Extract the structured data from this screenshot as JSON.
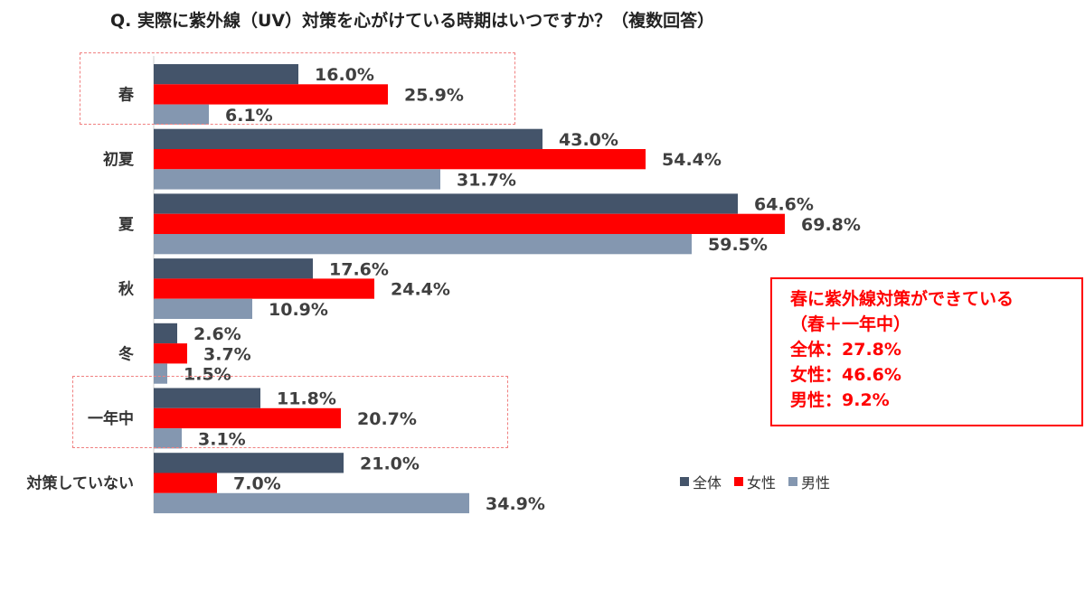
{
  "title": "Q. 実際に紫外線（UV）対策を心がけている時期はいつですか？（複数回答）",
  "colors": {
    "全体": "#44546a",
    "女性": "#ff0000",
    "男性": "#8497b0"
  },
  "chart_data": {
    "type": "bar",
    "orientation": "horizontal",
    "categories": [
      "春",
      "初夏",
      "夏",
      "秋",
      "冬",
      "一年中",
      "対策していない"
    ],
    "series": [
      {
        "name": "全体",
        "values": [
          16.0,
          43.0,
          64.6,
          17.6,
          2.6,
          11.8,
          21.0
        ],
        "labels": [
          "16.0%",
          "43.0%",
          "64.6%",
          "17.6%",
          "2.6%",
          "11.8%",
          "21.0%"
        ]
      },
      {
        "name": "女性",
        "values": [
          25.9,
          54.4,
          69.8,
          24.4,
          3.7,
          20.7,
          7.0
        ],
        "labels": [
          "25.9%",
          "54.4%",
          "69.8%",
          "24.4%",
          "3.7%",
          "20.7%",
          "7.0%"
        ]
      },
      {
        "name": "男性",
        "values": [
          6.1,
          31.7,
          59.5,
          10.9,
          1.5,
          3.1,
          34.9
        ],
        "labels": [
          "6.1%",
          "31.7%",
          "59.5%",
          "10.9%",
          "1.5%",
          "3.1%",
          "34.9%"
        ]
      }
    ],
    "xlim": [
      0,
      100
    ],
    "legend_position": "bottom-right",
    "highlighted_categories": [
      "春",
      "一年中"
    ]
  },
  "callout": {
    "line1": "春に紫外線対策ができている",
    "line2": "（春＋一年中）",
    "line3": "全体：27.8%",
    "line4": "女性：46.6%",
    "line5": "男性：9.2%"
  },
  "legend": {
    "item1": "全体",
    "item2": "女性",
    "item3": "男性"
  }
}
